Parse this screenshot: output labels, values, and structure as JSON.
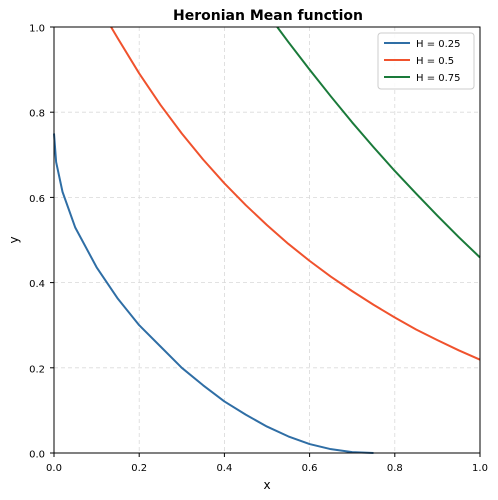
{
  "chart_data": {
    "type": "line",
    "title": "Heronian Mean function",
    "xlabel": "x",
    "ylabel": "y",
    "xlim": [
      0,
      1
    ],
    "ylim": [
      0,
      1
    ],
    "x_ticks": [
      "0.0",
      "0.2",
      "0.4",
      "0.6",
      "0.8",
      "1.0"
    ],
    "y_ticks": [
      "0.0",
      "0.2",
      "0.4",
      "0.6",
      "0.8",
      "1.0"
    ],
    "grid": true,
    "legend_position": "top-right",
    "series": [
      {
        "name": "H = 0.25",
        "color": "#2f6ea5",
        "x": [
          0.0,
          0.005,
          0.02,
          0.05,
          0.1,
          0.15,
          0.2,
          0.25,
          0.3,
          0.35,
          0.4,
          0.45,
          0.5,
          0.55,
          0.6,
          0.65,
          0.7,
          0.75
        ],
        "y": [
          0.75,
          0.683,
          0.613,
          0.529,
          0.436,
          0.362,
          0.3,
          0.25,
          0.2,
          0.159,
          0.121,
          0.09,
          0.062,
          0.039,
          0.021,
          0.009,
          0.002,
          0.0
        ]
      },
      {
        "name": "H = 0.5",
        "color": "#f0522d",
        "x": [
          0.134,
          0.15,
          0.2,
          0.25,
          0.3,
          0.35,
          0.4,
          0.45,
          0.5,
          0.55,
          0.6,
          0.65,
          0.7,
          0.75,
          0.8,
          0.85,
          0.9,
          0.95,
          1.0
        ],
        "y": [
          1.0,
          0.973,
          0.891,
          0.817,
          0.75,
          0.689,
          0.633,
          0.582,
          0.535,
          0.491,
          0.451,
          0.414,
          0.38,
          0.348,
          0.318,
          0.29,
          0.265,
          0.241,
          0.219
        ]
      },
      {
        "name": "H = 0.75",
        "color": "#1a7a3a",
        "x": [
          0.524,
          0.55,
          0.6,
          0.65,
          0.7,
          0.75,
          0.8,
          0.85,
          0.9,
          0.95,
          1.0
        ],
        "y": [
          1.0,
          0.965,
          0.9,
          0.837,
          0.776,
          0.718,
          0.662,
          0.609,
          0.557,
          0.507,
          0.459
        ]
      }
    ]
  }
}
